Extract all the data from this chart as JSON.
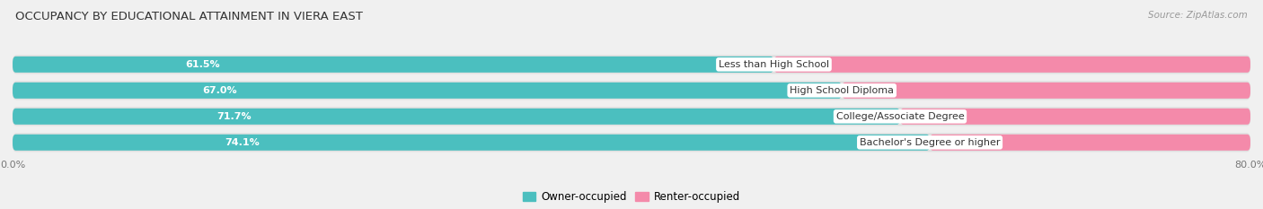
{
  "title": "OCCUPANCY BY EDUCATIONAL ATTAINMENT IN VIERA EAST",
  "source": "Source: ZipAtlas.com",
  "categories": [
    "Less than High School",
    "High School Diploma",
    "College/Associate Degree",
    "Bachelor's Degree or higher"
  ],
  "owner_values": [
    61.5,
    67.0,
    71.7,
    74.1
  ],
  "renter_values": [
    38.5,
    33.0,
    28.3,
    25.9
  ],
  "owner_color": "#4bbfbf",
  "renter_color": "#f48aaa",
  "owner_label": "Owner-occupied",
  "renter_label": "Renter-occupied",
  "background_color": "#f0f0f0",
  "bar_bg_color": "#e8e8e8",
  "title_fontsize": 9.5,
  "bar_value_fontsize": 8.0,
  "cat_label_fontsize": 8.0,
  "legend_fontsize": 8.5,
  "source_fontsize": 7.5,
  "axis_label_fontsize": 8.0
}
